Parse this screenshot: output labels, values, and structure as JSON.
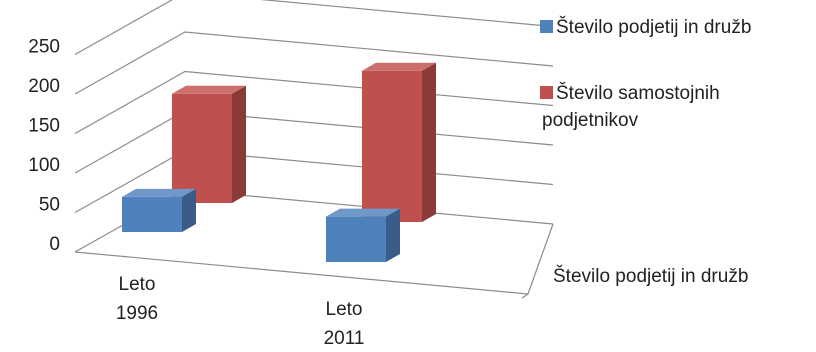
{
  "chart_data": {
    "type": "bar",
    "projection": "3d-columns",
    "categories": [
      [
        "Leto",
        "1996"
      ],
      [
        "Leto",
        "2011"
      ]
    ],
    "series": [
      {
        "name": "Število podjetij in družb",
        "values": [
          45,
          63
        ],
        "color": "#4f81bd"
      },
      {
        "name": "Število samostojnih podjetnikov",
        "values": [
          140,
          210
        ],
        "color": "#c0504d"
      }
    ],
    "depth_axis_label": "Število podjetij in družb",
    "yticks": [
      0,
      50,
      100,
      150,
      200,
      250
    ],
    "ylim": [
      0,
      250
    ],
    "legend": [
      {
        "lines": [
          "Število podjetij in družb"
        ],
        "color": "#4f81bd"
      },
      {
        "lines": [
          "Število samostojnih",
          "podjetnikov"
        ],
        "color": "#c0504d"
      }
    ],
    "legend_position": "right",
    "grid": true
  }
}
